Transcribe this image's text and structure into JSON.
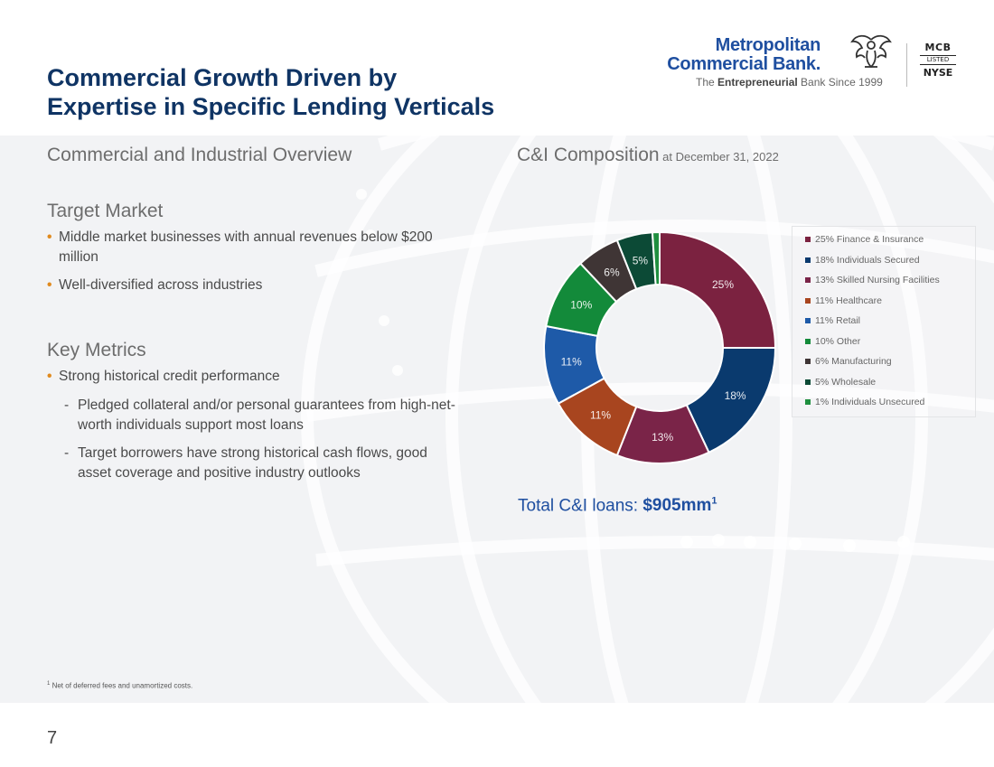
{
  "slide": {
    "title_line1": "Commercial Growth Driven by",
    "title_line2": "Expertise in Specific Lending Verticals",
    "page_number": "7",
    "footnote_marker": "1",
    "footnote_text": " Net of deferred fees and unamortized costs."
  },
  "logo": {
    "name_line1": "Metropolitan",
    "name_line2": "Commercial Bank.",
    "tag_pre": "The ",
    "tag_bold": "Entrepreneurial",
    "tag_post": " Bank Since 1999",
    "badge_top": "MCB",
    "badge_mid": "LISTED",
    "badge_bot": "NYSE"
  },
  "overview": {
    "heading": "Commercial and Industrial Overview",
    "target_market": {
      "heading": "Target Market",
      "bullets": [
        "Middle market businesses with annual revenues below $200 million",
        "Well-diversified across industries"
      ]
    },
    "key_metrics": {
      "heading": "Key Metrics",
      "bullet": "Strong historical credit performance",
      "sub_bullets": [
        "Pledged collateral and/or personal guarantees from high-net-worth individuals support most loans",
        "Target borrowers have strong historical cash flows, good asset coverage and positive industry outlooks"
      ]
    }
  },
  "chart_header": {
    "title": "C&I Composition",
    "date": " at December 31, 2022",
    "total_label": "Total C&I loans: ",
    "total_value": "$905mm",
    "total_sup": "1"
  },
  "chart_data": {
    "type": "pie",
    "title": "C&I Composition",
    "subtitle": "at December 31, 2022",
    "donut": true,
    "unit": "%",
    "categories": [
      "Finance & Insurance",
      "Individuals Secured",
      "Skilled Nursing Facilities",
      "Healthcare",
      "Retail",
      "Other",
      "Manufacturing",
      "Wholesale",
      "Individuals Unsecured"
    ],
    "values": [
      25,
      18,
      13,
      11,
      11,
      10,
      6,
      5,
      1
    ],
    "slice_labels": [
      "25%",
      "18%",
      "13%",
      "11%",
      "11%",
      "10%",
      "6%",
      "5%",
      ""
    ],
    "legend_labels": [
      "25% Finance & Insurance",
      "18% Individuals Secured",
      "13% Skilled Nursing Facilities",
      "11% Healthcare",
      "11% Retail",
      "10% Other",
      "6% Manufacturing",
      "5% Wholesale",
      "1% Individuals Unsecured"
    ],
    "colors": [
      "#7b2240",
      "#0a3a6e",
      "#7a2448",
      "#a8451f",
      "#1e5aa8",
      "#138a3a",
      "#3f3535",
      "#0c4a36",
      "#1f8f3f"
    ],
    "legend_colors": [
      "#7b2240",
      "#0a3a6e",
      "#7a2448",
      "#a8451f",
      "#1e5aa8",
      "#138a3a",
      "#3f3535",
      "#0c4a36",
      "#1f8f3f"
    ],
    "legend_position": "right"
  }
}
